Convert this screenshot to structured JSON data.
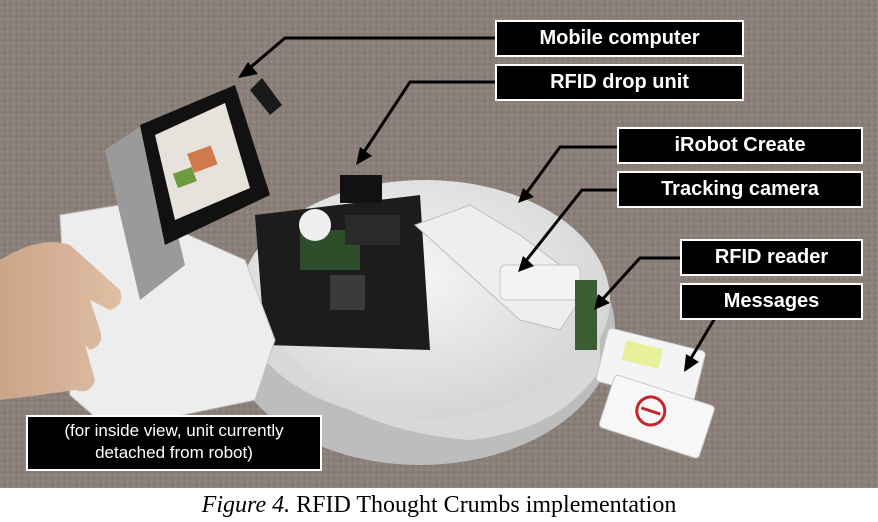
{
  "callouts": {
    "mobile_computer": "Mobile computer",
    "rfid_drop_unit": "RFID drop unit",
    "irobot_create": "iRobot Create",
    "tracking_camera": "Tracking camera",
    "rfid_reader": "RFID reader",
    "messages": "Messages"
  },
  "note": {
    "line1": "(for inside view, unit currently",
    "line2": "detached from robot)"
  },
  "caption": {
    "figure": "Figure 4.",
    "text": " RFID Thought Crumbs implementation"
  },
  "colors": {
    "carpet": "#8a8079",
    "robot_body": "#e9e9e9",
    "label_bg": "#000000",
    "label_text": "#ffffff"
  }
}
